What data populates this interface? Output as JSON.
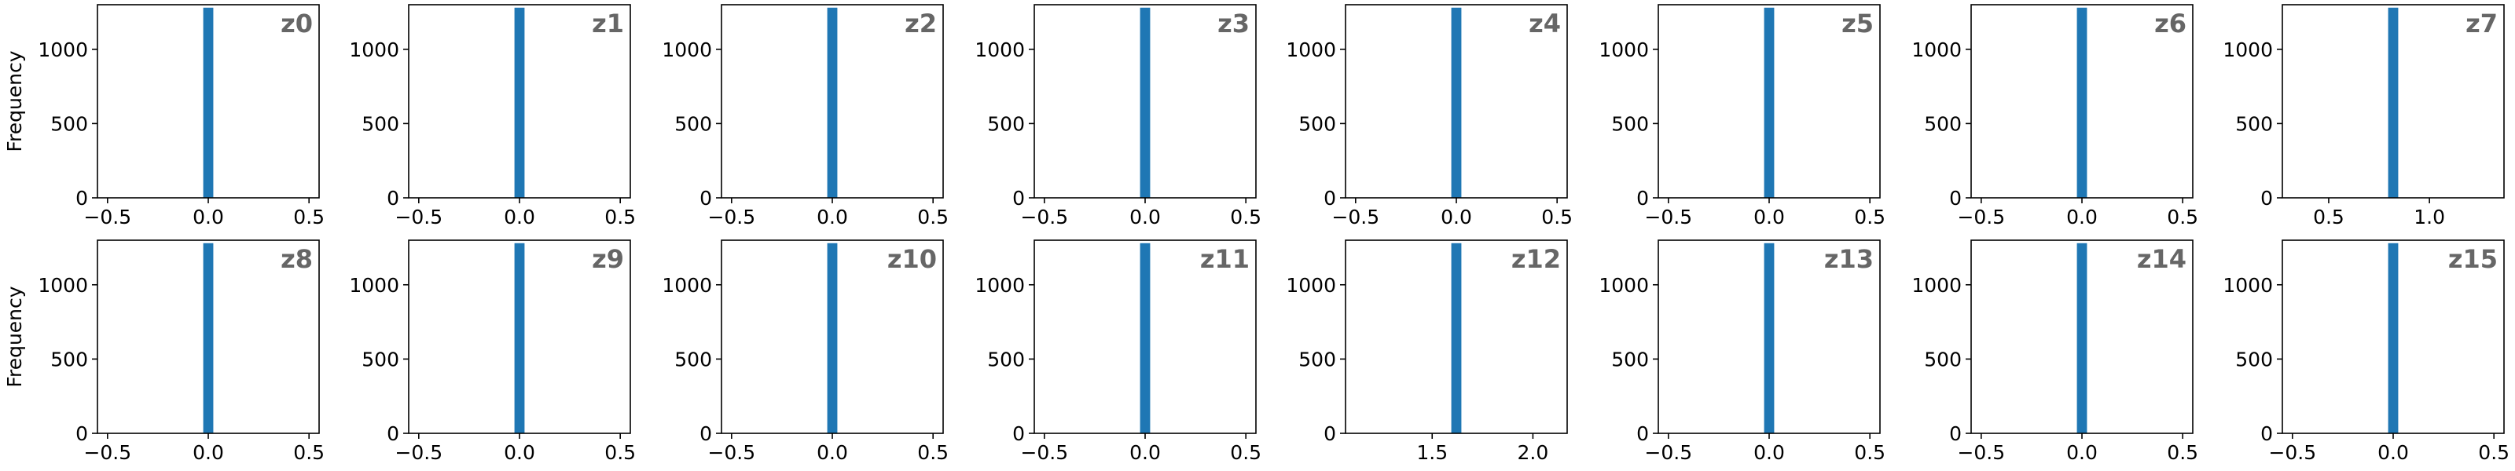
{
  "figure": {
    "ylabel": "Frequency",
    "bar_color": "#1f77b4",
    "title_color": "#666666"
  },
  "chart_data": [
    {
      "type": "bar",
      "title": "z0",
      "ylabel": "Frequency",
      "xlim": [
        -0.55,
        0.55
      ],
      "xticks": [
        -0.5,
        0.0,
        0.5
      ],
      "xtick_labels": [
        "−0.5",
        "0.0",
        "0.5"
      ],
      "ylim": [
        0,
        1300
      ],
      "yticks": [
        0,
        500,
        1000
      ],
      "ytick_labels": [
        "0",
        "500",
        "1000"
      ],
      "bars": [
        {
          "x0": -0.025,
          "x1": 0.025,
          "count": 1280
        }
      ],
      "grid": false
    },
    {
      "type": "bar",
      "title": "z1",
      "ylabel": "",
      "xlim": [
        -0.55,
        0.55
      ],
      "xticks": [
        -0.5,
        0.0,
        0.5
      ],
      "xtick_labels": [
        "−0.5",
        "0.0",
        "0.5"
      ],
      "ylim": [
        0,
        1300
      ],
      "yticks": [
        0,
        500,
        1000
      ],
      "ytick_labels": [
        "0",
        "500",
        "1000"
      ],
      "bars": [
        {
          "x0": -0.025,
          "x1": 0.025,
          "count": 1280
        }
      ],
      "grid": false
    },
    {
      "type": "bar",
      "title": "z2",
      "ylabel": "",
      "xlim": [
        -0.55,
        0.55
      ],
      "xticks": [
        -0.5,
        0.0,
        0.5
      ],
      "xtick_labels": [
        "−0.5",
        "0.0",
        "0.5"
      ],
      "ylim": [
        0,
        1300
      ],
      "yticks": [
        0,
        500,
        1000
      ],
      "ytick_labels": [
        "0",
        "500",
        "1000"
      ],
      "bars": [
        {
          "x0": -0.025,
          "x1": 0.025,
          "count": 1280
        }
      ],
      "grid": false
    },
    {
      "type": "bar",
      "title": "z3",
      "ylabel": "",
      "xlim": [
        -0.55,
        0.55
      ],
      "xticks": [
        -0.5,
        0.0,
        0.5
      ],
      "xtick_labels": [
        "−0.5",
        "0.0",
        "0.5"
      ],
      "ylim": [
        0,
        1300
      ],
      "yticks": [
        0,
        500,
        1000
      ],
      "ytick_labels": [
        "0",
        "500",
        "1000"
      ],
      "bars": [
        {
          "x0": -0.025,
          "x1": 0.025,
          "count": 1280
        }
      ],
      "grid": false
    },
    {
      "type": "bar",
      "title": "z4",
      "ylabel": "",
      "xlim": [
        -0.55,
        0.55
      ],
      "xticks": [
        -0.5,
        0.0,
        0.5
      ],
      "xtick_labels": [
        "−0.5",
        "0.0",
        "0.5"
      ],
      "ylim": [
        0,
        1300
      ],
      "yticks": [
        0,
        500,
        1000
      ],
      "ytick_labels": [
        "0",
        "500",
        "1000"
      ],
      "bars": [
        {
          "x0": -0.025,
          "x1": 0.025,
          "count": 1280
        }
      ],
      "grid": false
    },
    {
      "type": "bar",
      "title": "z5",
      "ylabel": "",
      "xlim": [
        -0.55,
        0.55
      ],
      "xticks": [
        -0.5,
        0.0,
        0.5
      ],
      "xtick_labels": [
        "−0.5",
        "0.0",
        "0.5"
      ],
      "ylim": [
        0,
        1300
      ],
      "yticks": [
        0,
        500,
        1000
      ],
      "ytick_labels": [
        "0",
        "500",
        "1000"
      ],
      "bars": [
        {
          "x0": -0.025,
          "x1": 0.025,
          "count": 1280
        }
      ],
      "grid": false
    },
    {
      "type": "bar",
      "title": "z6",
      "ylabel": "",
      "xlim": [
        -0.55,
        0.55
      ],
      "xticks": [
        -0.5,
        0.0,
        0.5
      ],
      "xtick_labels": [
        "−0.5",
        "0.0",
        "0.5"
      ],
      "ylim": [
        0,
        1300
      ],
      "yticks": [
        0,
        500,
        1000
      ],
      "ytick_labels": [
        "0",
        "500",
        "1000"
      ],
      "bars": [
        {
          "x0": -0.025,
          "x1": 0.025,
          "count": 1280
        }
      ],
      "grid": false
    },
    {
      "type": "bar",
      "title": "z7",
      "ylabel": "",
      "xlim": [
        0.27,
        1.37
      ],
      "xticks": [
        0.5,
        1.0
      ],
      "xtick_labels": [
        "0.5",
        "1.0"
      ],
      "ylim": [
        0,
        1300
      ],
      "yticks": [
        0,
        500,
        1000
      ],
      "ytick_labels": [
        "0",
        "500",
        "1000"
      ],
      "bars": [
        {
          "x0": 0.795,
          "x1": 0.845,
          "count": 1280
        }
      ],
      "grid": false
    },
    {
      "type": "bar",
      "title": "z8",
      "ylabel": "Frequency",
      "xlim": [
        -0.55,
        0.55
      ],
      "xticks": [
        -0.5,
        0.0,
        0.5
      ],
      "xtick_labels": [
        "−0.5",
        "0.0",
        "0.5"
      ],
      "ylim": [
        0,
        1300
      ],
      "yticks": [
        0,
        500,
        1000
      ],
      "ytick_labels": [
        "0",
        "500",
        "1000"
      ],
      "bars": [
        {
          "x0": -0.025,
          "x1": 0.025,
          "count": 1280
        }
      ],
      "grid": false
    },
    {
      "type": "bar",
      "title": "z9",
      "ylabel": "",
      "xlim": [
        -0.55,
        0.55
      ],
      "xticks": [
        -0.5,
        0.0,
        0.5
      ],
      "xtick_labels": [
        "−0.5",
        "0.0",
        "0.5"
      ],
      "ylim": [
        0,
        1300
      ],
      "yticks": [
        0,
        500,
        1000
      ],
      "ytick_labels": [
        "0",
        "500",
        "1000"
      ],
      "bars": [
        {
          "x0": -0.025,
          "x1": 0.025,
          "count": 1280
        }
      ],
      "grid": false
    },
    {
      "type": "bar",
      "title": "z10",
      "ylabel": "",
      "xlim": [
        -0.55,
        0.55
      ],
      "xticks": [
        -0.5,
        0.0,
        0.5
      ],
      "xtick_labels": [
        "−0.5",
        "0.0",
        "0.5"
      ],
      "ylim": [
        0,
        1300
      ],
      "yticks": [
        0,
        500,
        1000
      ],
      "ytick_labels": [
        "0",
        "500",
        "1000"
      ],
      "bars": [
        {
          "x0": -0.025,
          "x1": 0.025,
          "count": 1280
        }
      ],
      "grid": false
    },
    {
      "type": "bar",
      "title": "z11",
      "ylabel": "",
      "xlim": [
        -0.55,
        0.55
      ],
      "xticks": [
        -0.5,
        0.0,
        0.5
      ],
      "xtick_labels": [
        "−0.5",
        "0.0",
        "0.5"
      ],
      "ylim": [
        0,
        1300
      ],
      "yticks": [
        0,
        500,
        1000
      ],
      "ytick_labels": [
        "0",
        "500",
        "1000"
      ],
      "bars": [
        {
          "x0": -0.025,
          "x1": 0.025,
          "count": 1280
        }
      ],
      "grid": false
    },
    {
      "type": "bar",
      "title": "z12",
      "ylabel": "",
      "xlim": [
        1.07,
        2.17
      ],
      "xticks": [
        1.5,
        2.0
      ],
      "xtick_labels": [
        "1.5",
        "2.0"
      ],
      "ylim": [
        0,
        1300
      ],
      "yticks": [
        0,
        500,
        1000
      ],
      "ytick_labels": [
        "0",
        "500",
        "1000"
      ],
      "bars": [
        {
          "x0": 1.595,
          "x1": 1.645,
          "count": 1280
        }
      ],
      "grid": false
    },
    {
      "type": "bar",
      "title": "z13",
      "ylabel": "",
      "xlim": [
        -0.55,
        0.55
      ],
      "xticks": [
        -0.5,
        0.0,
        0.5
      ],
      "xtick_labels": [
        "−0.5",
        "0.0",
        "0.5"
      ],
      "ylim": [
        0,
        1300
      ],
      "yticks": [
        0,
        500,
        1000
      ],
      "ytick_labels": [
        "0",
        "500",
        "1000"
      ],
      "bars": [
        {
          "x0": -0.025,
          "x1": 0.025,
          "count": 1280
        }
      ],
      "grid": false
    },
    {
      "type": "bar",
      "title": "z14",
      "ylabel": "",
      "xlim": [
        -0.55,
        0.55
      ],
      "xticks": [
        -0.5,
        0.0,
        0.5
      ],
      "xtick_labels": [
        "−0.5",
        "0.0",
        "0.5"
      ],
      "ylim": [
        0,
        1300
      ],
      "yticks": [
        0,
        500,
        1000
      ],
      "ytick_labels": [
        "0",
        "500",
        "1000"
      ],
      "bars": [
        {
          "x0": -0.025,
          "x1": 0.025,
          "count": 1280
        }
      ],
      "grid": false
    },
    {
      "type": "bar",
      "title": "z15",
      "ylabel": "",
      "xlim": [
        -0.55,
        0.55
      ],
      "xticks": [
        -0.5,
        0.0,
        0.5
      ],
      "xtick_labels": [
        "−0.5",
        "0.0",
        "0.5"
      ],
      "ylim": [
        0,
        1300
      ],
      "yticks": [
        0,
        500,
        1000
      ],
      "ytick_labels": [
        "0",
        "500",
        "1000"
      ],
      "bars": [
        {
          "x0": -0.025,
          "x1": 0.025,
          "count": 1280
        }
      ],
      "grid": false
    }
  ]
}
